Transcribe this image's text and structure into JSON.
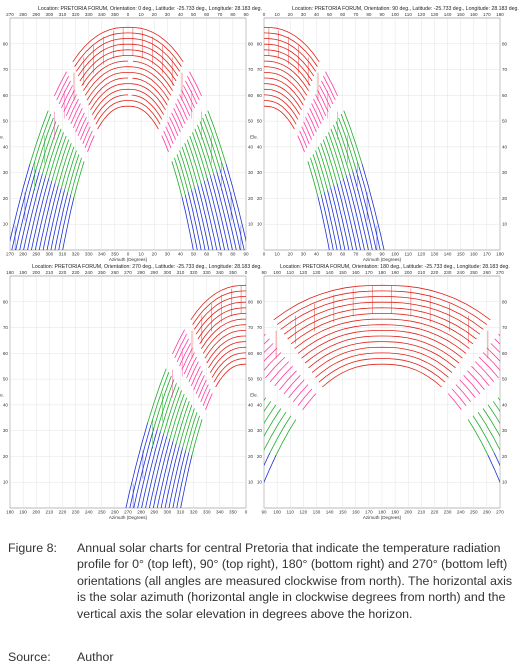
{
  "panels": [
    {
      "id": "orientation-0",
      "title": "Location: PRETORIA FORUM, Orientation: 0 deg., Latitude: -25.733 deg., Longitude: 28.183 deg.",
      "axis_top": [
        "270",
        "280",
        "290",
        "300",
        "310",
        "320",
        "330",
        "340",
        "350",
        "0",
        "10",
        "20",
        "30",
        "40",
        "50",
        "60",
        "70",
        "80",
        "90"
      ],
      "axis_bottom": [
        "270",
        "280",
        "290",
        "300",
        "310",
        "320",
        "330",
        "340",
        "350",
        "0",
        "10",
        "20",
        "30",
        "40",
        "50",
        "60",
        "70",
        "80",
        "90"
      ],
      "axis_left": [
        "80",
        "70",
        "60",
        "50",
        "40",
        "30",
        "20",
        "10"
      ],
      "axis_right": [
        "80",
        "70",
        "60",
        "50",
        "40",
        "30",
        "20",
        "10"
      ],
      "xlabel": "Azimuth (Degrees)",
      "ylabel": "Ele.",
      "arch_center": 0.5,
      "arch_half_width": 0.52,
      "arch_top": 0.04,
      "arch_bottom_left": 1.05,
      "arch_bottom_right": 1.05
    },
    {
      "id": "orientation-90",
      "title": "Location: PRETORIA FORUM, Orientation: 90 deg., Latitude: -25.733 deg., Longitude: 28.183 deg.",
      "axis_top": [
        "0",
        "10",
        "20",
        "30",
        "40",
        "50",
        "60",
        "70",
        "80",
        "90",
        "100",
        "110",
        "120",
        "130",
        "140",
        "150",
        "160",
        "170",
        "180"
      ],
      "axis_bottom": [
        "0",
        "10",
        "20",
        "30",
        "40",
        "50",
        "60",
        "70",
        "80",
        "90",
        "100",
        "110",
        "120",
        "130",
        "140",
        "150",
        "160",
        "170",
        "180"
      ],
      "axis_left": [
        "80",
        "70",
        "60",
        "50",
        "40",
        "30",
        "20",
        "10"
      ],
      "axis_right": [
        "80",
        "70",
        "60",
        "50",
        "40",
        "30",
        "20",
        "10"
      ],
      "xlabel": "Azimuth (Degrees)",
      "ylabel": "Ele.",
      "arch_center": 0.0,
      "arch_half_width": 0.52,
      "arch_top": 0.04,
      "arch_bottom_left": 1.05,
      "arch_bottom_right": 1.05
    },
    {
      "id": "orientation-270",
      "title": "Location: PRETORIA FORUM, Orientation: 270 deg., Latitude: -25.733 deg., Longitude: 28.183 deg.",
      "axis_top": [
        "180",
        "190",
        "200",
        "210",
        "220",
        "230",
        "240",
        "250",
        "260",
        "270",
        "280",
        "290",
        "300",
        "310",
        "320",
        "330",
        "340",
        "350",
        "0"
      ],
      "axis_bottom": [
        "180",
        "190",
        "200",
        "210",
        "220",
        "230",
        "240",
        "250",
        "260",
        "270",
        "280",
        "290",
        "300",
        "310",
        "320",
        "330",
        "340",
        "350",
        "0"
      ],
      "axis_left": [
        "80",
        "70",
        "60",
        "50",
        "40",
        "30",
        "20",
        "10"
      ],
      "axis_right": [
        "80",
        "70",
        "60",
        "50",
        "40",
        "30",
        "20",
        "10"
      ],
      "xlabel": "Azimuth (Degrees)",
      "ylabel": "Ele.",
      "arch_center": 1.0,
      "arch_half_width": 0.52,
      "arch_top": 0.04,
      "arch_bottom_left": 1.05,
      "arch_bottom_right": 1.05
    },
    {
      "id": "orientation-180",
      "title": "Location: PRETORIA FORUM, Orientation: 180 deg., Latitude: -25.733 deg., Longitude: 28.183 deg.",
      "axis_top": [
        "90",
        "100",
        "110",
        "120",
        "130",
        "140",
        "150",
        "160",
        "170",
        "180",
        "190",
        "200",
        "210",
        "220",
        "230",
        "240",
        "250",
        "260",
        "270"
      ],
      "axis_bottom": [
        "90",
        "100",
        "110",
        "120",
        "130",
        "140",
        "150",
        "160",
        "170",
        "180",
        "190",
        "200",
        "210",
        "220",
        "230",
        "240",
        "250",
        "260",
        "270"
      ],
      "axis_left": [
        "80",
        "70",
        "60",
        "50",
        "40",
        "30",
        "20",
        "10"
      ],
      "axis_right": [
        "80",
        "70",
        "60",
        "50",
        "40",
        "30",
        "20",
        "10"
      ],
      "xlabel": "Azimuth (Degrees)",
      "ylabel": "Ele.",
      "arch_center": 0.5,
      "arch_half_width": 1.02,
      "arch_top": 0.04,
      "arch_bottom_left": 1.05,
      "arch_bottom_right": 1.05
    }
  ],
  "colors": {
    "curve_red": "#e0231b",
    "curve_pink": "#ff3aa0",
    "curve_green": "#1fae2a",
    "curve_blue": "#1c2fd6",
    "grid": "#dcdcdc",
    "frame": "#9a9a9a"
  },
  "caption": {
    "label": "Figure 8:",
    "text": "Annual solar charts for central Pretoria that indicate the temperature radiation profile for 0° (top left), 90° (top right), 180° (bottom right) and 270° (bottom left) orientations (all angles are measured clockwise from north). The horizontal axis is the solar azimuth (horizontal angle in clockwise degrees from north) and the vertical axis the solar elevation in degrees above the horizon."
  },
  "source": {
    "label": "Source:",
    "value": "Author"
  }
}
